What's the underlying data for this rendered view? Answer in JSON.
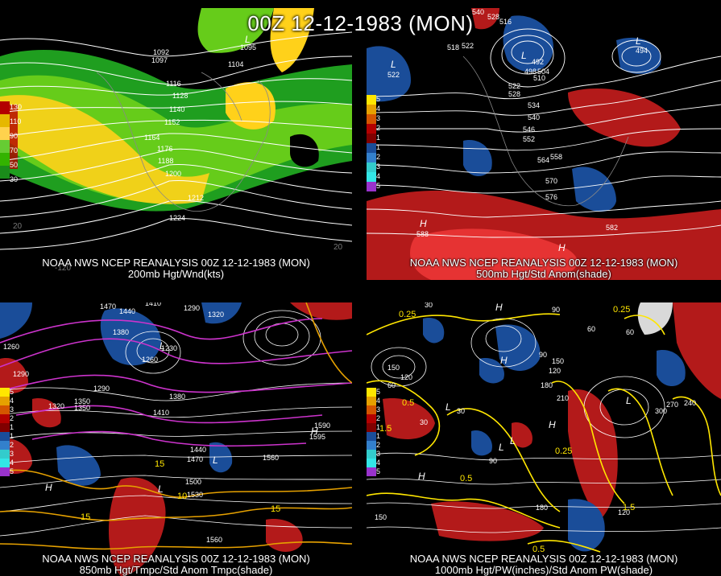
{
  "title": "00Z 12-12-1983 (MON)",
  "panels": [
    {
      "id": "p200",
      "source": "NOAA NWS NCEP REANALYSIS 00Z 12-12-1983 (MON)",
      "caption": "200mb Hgt/Wnd(kts)",
      "legend": [
        "130",
        "110",
        "90",
        "70",
        "50",
        "30"
      ],
      "legend_colors": [
        "#b30000",
        "#e6b800",
        "#ffd24d",
        "#66cc33",
        "#33b300",
        "#1a8c1a"
      ],
      "contour_labels": [
        "1092",
        "1097",
        "1095",
        "1104",
        "1116",
        "1128",
        "1140",
        "1152",
        "1164",
        "1176",
        "1188",
        "1200",
        "1212",
        "1224"
      ],
      "tick_labels": [
        "20",
        "-120",
        "20"
      ],
      "colors": {
        "wind_strong": "#ffd11a",
        "wind_mid": "#66cc1a",
        "wind_weak": "#1f9e1f",
        "wind_max": "#b30000"
      }
    },
    {
      "id": "p500",
      "source": "NOAA NWS NCEP REANALYSIS 00Z 12-12-1983 (MON)",
      "caption": "500mb Hgt/Std Anom(shade)",
      "legend": [
        "5",
        "4",
        "3",
        "2",
        "1",
        "1",
        "2",
        "3",
        "4",
        "5"
      ],
      "legend_colors": [
        "#ffe600",
        "#e6a100",
        "#d45500",
        "#b30000",
        "#800000",
        "#1a4d99",
        "#3380cc",
        "#33cccc",
        "#33e6e6",
        "#9933cc"
      ],
      "contour_labels": [
        "540",
        "528",
        "516",
        "522",
        "518",
        "510",
        "498",
        "504",
        "492",
        "522",
        "528",
        "534",
        "540",
        "546",
        "552",
        "558",
        "564",
        "570",
        "576",
        "582",
        "522",
        "510",
        "504",
        "498",
        "516"
      ],
      "h_markers": [
        "H",
        "H"
      ],
      "h_values": [
        "588"
      ],
      "l_markers": [
        "L",
        "L",
        "L"
      ],
      "l_values": [
        "522",
        "494"
      ]
    },
    {
      "id": "p850",
      "source": "NOAA NWS NCEP REANALYSIS 00Z 12-12-1983 (MON)",
      "caption": "850mb Hgt/Tmpc/Std Anom Tmpc(shade)",
      "legend": [
        "5",
        "4",
        "3",
        "2",
        "1",
        "1",
        "2",
        "3",
        "4",
        "5"
      ],
      "legend_colors": [
        "#ffe600",
        "#e6a100",
        "#d45500",
        "#b30000",
        "#800000",
        "#1a4d99",
        "#3380cc",
        "#33cccc",
        "#33e6e6",
        "#9933cc"
      ],
      "contour_labels": [
        "1470",
        "1440",
        "1410",
        "1380",
        "1290",
        "1320",
        "1350",
        "1260",
        "1290",
        "1260",
        "1230",
        "1290",
        "1320",
        "1350",
        "1380",
        "1410",
        "1440",
        "1470",
        "1500",
        "1530",
        "1560",
        "1590",
        "1595",
        "1560",
        "1410",
        "1560",
        "1260",
        "1290",
        "1260",
        "1530",
        "1530",
        "1560",
        "1380",
        "1290",
        "1310"
      ],
      "yellow_labels": [
        "15",
        "10",
        "15",
        "15"
      ],
      "h_markers": [
        "H",
        "H"
      ],
      "l_markers": [
        "L",
        "L",
        "L"
      ]
    },
    {
      "id": "p1000",
      "source": "NOAA NWS NCEP REANALYSIS 00Z 12-12-1983 (MON)",
      "caption": "1000mb Hgt/PW(inches)/Std Anom PW(shade)",
      "legend": [
        "5",
        "4",
        "3",
        "2",
        "1",
        "1",
        "2",
        "3",
        "4",
        "5"
      ],
      "legend_colors": [
        "#ffe600",
        "#e6a100",
        "#d45500",
        "#b30000",
        "#800000",
        "#1a4d99",
        "#3380cc",
        "#33cccc",
        "#33e6e6",
        "#9933cc"
      ],
      "contour_labels": [
        "30",
        "150",
        "120",
        "60",
        "30",
        "90",
        "60",
        "150",
        "120",
        "180",
        "210",
        "90",
        "60",
        "30",
        "90",
        "120",
        "180",
        "150",
        "270",
        "300",
        "240",
        "180",
        "150",
        "120",
        "90",
        "60",
        "30",
        "180"
      ],
      "yellow_labels": [
        "0.25",
        "0.5",
        "1.5",
        "0.5",
        "0.25",
        "1.5",
        "0.25",
        "0.5",
        "0.25",
        "0.25"
      ],
      "h_markers": [
        "H",
        "H",
        "H",
        "H",
        "H",
        "H"
      ],
      "l_markers": [
        "L",
        "L",
        "L",
        "L",
        "L",
        "L"
      ]
    }
  ]
}
